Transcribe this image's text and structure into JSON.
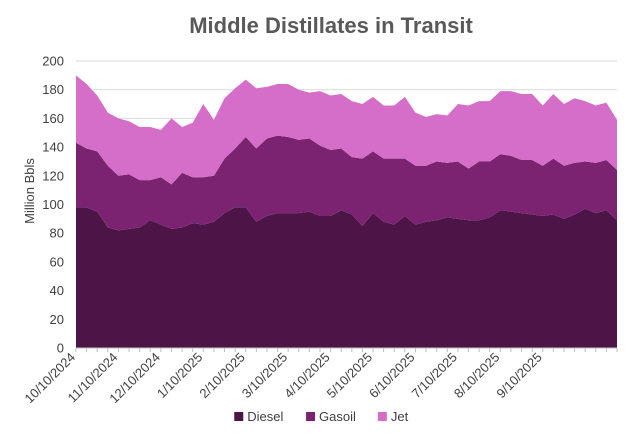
{
  "chart_data": {
    "type": "area",
    "stacked": true,
    "title": "Middle Distillates in Transit",
    "xlabel": "",
    "ylabel": "Million Bbls",
    "ylim": [
      0,
      200
    ],
    "yticks": [
      0,
      20,
      40,
      60,
      80,
      100,
      120,
      140,
      160,
      180,
      200
    ],
    "xtick_labels": [
      "10/10/2024",
      "11/10/2024",
      "12/10/2024",
      "1/10/2025",
      "2/10/2025",
      "3/10/2025",
      "4/10/2025",
      "5/10/2025",
      "6/10/2025",
      "7/10/2025",
      "8/10/2025",
      "9/10/2025"
    ],
    "xtick_indices": [
      0,
      4,
      8,
      12,
      16,
      20,
      24,
      28,
      32,
      36,
      40,
      44
    ],
    "legend_position": "bottom",
    "series": [
      {
        "name": "Diesel",
        "color": "#4d1547",
        "values": [
          98,
          98,
          95,
          84,
          82,
          83,
          84,
          89,
          86,
          83,
          84,
          87,
          86,
          88,
          94,
          98,
          98,
          88,
          92,
          94,
          94,
          94,
          95,
          92,
          92,
          96,
          93,
          85,
          94,
          88,
          86,
          92,
          86,
          88,
          89,
          91,
          90,
          89,
          89,
          91,
          96,
          95,
          94,
          93,
          92,
          93,
          90,
          93,
          97,
          94,
          96,
          89
        ]
      },
      {
        "name": "Gasoil",
        "color": "#7b2370",
        "values": [
          45,
          41,
          42,
          43,
          38,
          38,
          33,
          28,
          33,
          31,
          38,
          32,
          33,
          32,
          38,
          41,
          49,
          51,
          54,
          54,
          53,
          51,
          51,
          49,
          46,
          43,
          40,
          47,
          43,
          44,
          46,
          40,
          41,
          39,
          41,
          38,
          40,
          36,
          41,
          39,
          39,
          39,
          37,
          38,
          35,
          39,
          37,
          36,
          33,
          35,
          35,
          35
        ]
      },
      {
        "name": "Jet",
        "color": "#d46ec9",
        "values": [
          47,
          45,
          39,
          37,
          40,
          37,
          37,
          37,
          33,
          46,
          32,
          38,
          51,
          39,
          42,
          42,
          40,
          42,
          36,
          36,
          37,
          35,
          32,
          38,
          38,
          38,
          39,
          38,
          38,
          37,
          37,
          43,
          37,
          34,
          33,
          33,
          40,
          44,
          42,
          42,
          44,
          45,
          46,
          46,
          42,
          45,
          43,
          45,
          42,
          40,
          40,
          35
        ]
      }
    ]
  }
}
